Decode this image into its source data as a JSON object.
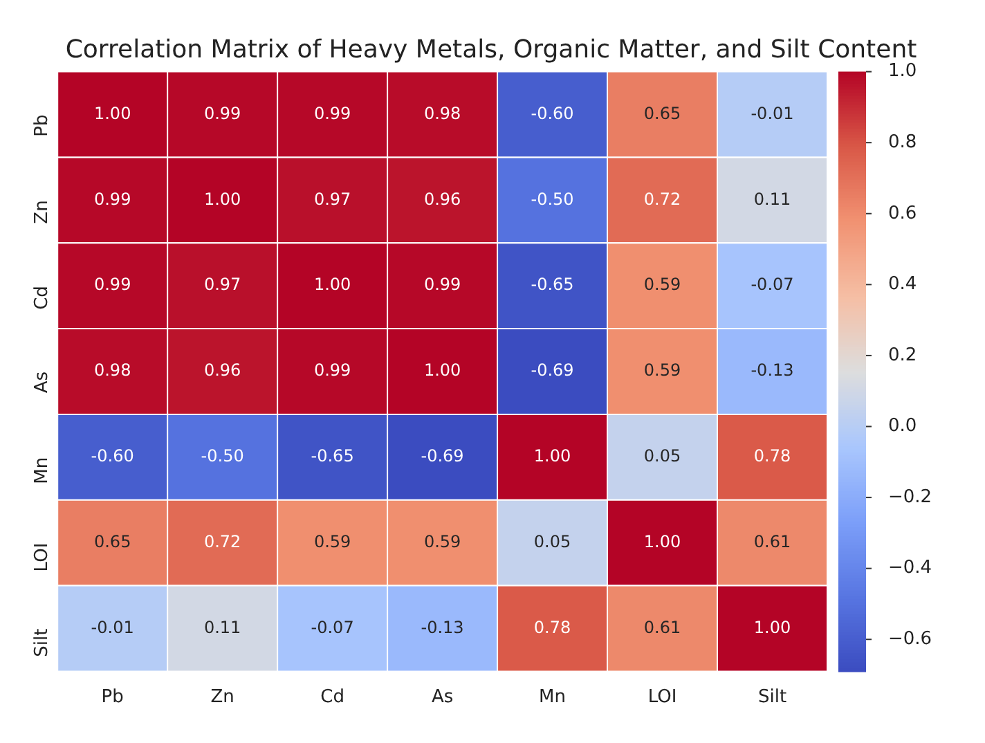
{
  "chart_data": {
    "type": "heatmap",
    "title": "Correlation Matrix of Heavy Metals, Organic Matter, and Silt Content",
    "categories": [
      "Pb",
      "Zn",
      "Cd",
      "As",
      "Mn",
      "LOI",
      "Silt"
    ],
    "y_categories": [
      "Pb",
      "Zn",
      "Cd",
      "As",
      "Mn",
      "LOI",
      "Silt"
    ],
    "cells": [
      [
        1.0,
        0.99,
        0.99,
        0.98,
        -0.6,
        0.65,
        -0.01
      ],
      [
        0.99,
        1.0,
        0.97,
        0.96,
        -0.5,
        0.72,
        0.11
      ],
      [
        0.99,
        0.97,
        1.0,
        0.99,
        -0.65,
        0.59,
        -0.07
      ],
      [
        0.98,
        0.96,
        0.99,
        1.0,
        -0.69,
        0.59,
        -0.13
      ],
      [
        -0.6,
        -0.5,
        -0.65,
        -0.69,
        1.0,
        0.05,
        0.78
      ],
      [
        0.65,
        0.72,
        0.59,
        0.59,
        0.05,
        1.0,
        0.61
      ],
      [
        -0.01,
        0.11,
        -0.07,
        -0.13,
        0.78,
        0.61,
        1.0
      ]
    ],
    "cell_labels": [
      [
        "1.00",
        "0.99",
        "0.99",
        "0.98",
        "-0.60",
        "0.65",
        "-0.01"
      ],
      [
        "0.99",
        "1.00",
        "0.97",
        "0.96",
        "-0.50",
        "0.72",
        "0.11"
      ],
      [
        "0.99",
        "0.97",
        "1.00",
        "0.99",
        "-0.65",
        "0.59",
        "-0.07"
      ],
      [
        "0.98",
        "0.96",
        "0.99",
        "1.00",
        "-0.69",
        "0.59",
        "-0.13"
      ],
      [
        "-0.60",
        "-0.50",
        "-0.65",
        "-0.69",
        "1.00",
        "0.05",
        "0.78"
      ],
      [
        "0.65",
        "0.72",
        "0.59",
        "0.59",
        "0.05",
        "1.00",
        "0.61"
      ],
      [
        "-0.01",
        "0.11",
        "-0.07",
        "-0.13",
        "0.78",
        "0.61",
        "1.00"
      ]
    ],
    "data_labels": true,
    "clim": [
      -0.69,
      1.0
    ],
    "cticks": [
      {
        "value": 1.0,
        "label": "1.0"
      },
      {
        "value": 0.8,
        "label": "0.8"
      },
      {
        "value": 0.6,
        "label": "0.6"
      },
      {
        "value": 0.4,
        "label": "0.4"
      },
      {
        "value": 0.2,
        "label": "0.2"
      },
      {
        "value": 0.0,
        "label": "0.0"
      },
      {
        "value": -0.2,
        "label": "−0.2"
      },
      {
        "value": -0.4,
        "label": "−0.4"
      },
      {
        "value": -0.6,
        "label": "−0.6"
      }
    ]
  }
}
